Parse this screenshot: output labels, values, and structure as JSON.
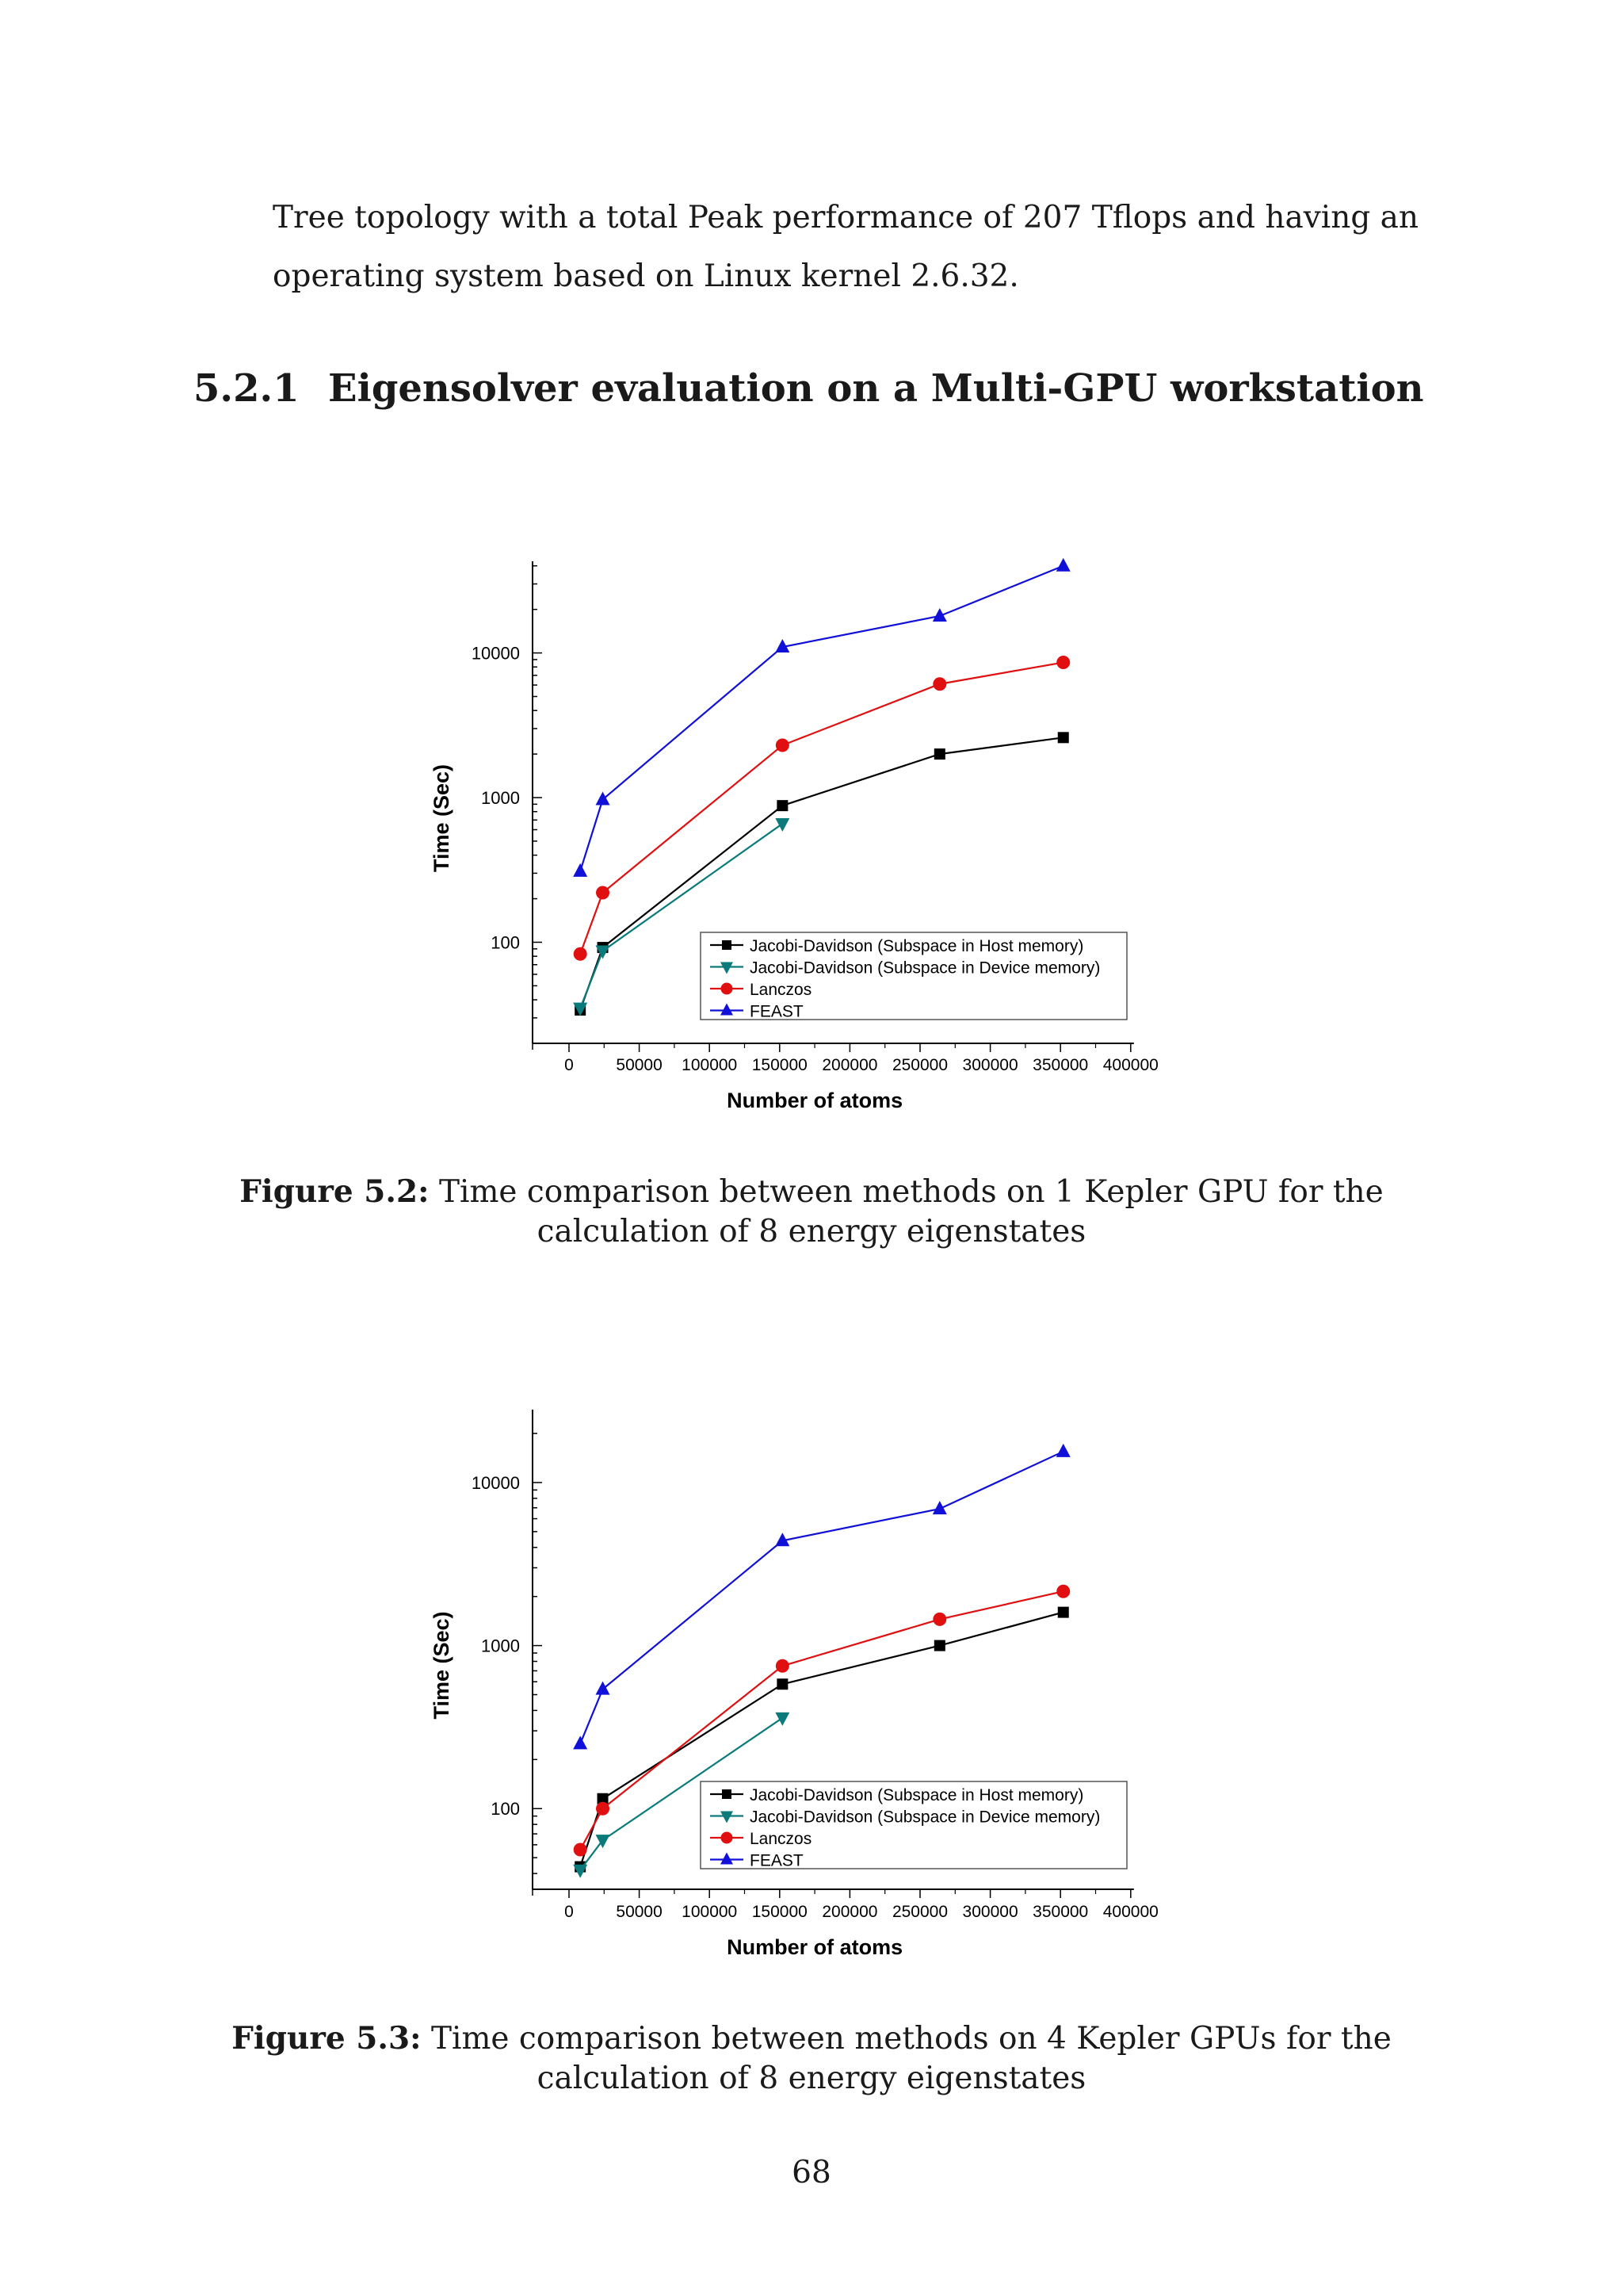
{
  "page": {
    "paragraph": "Tree topology with a total Peak performance of 207 Tflops and having an operating system based on Linux kernel 2.6.32.",
    "section_number": "5.2.1",
    "section_title": "Eigensolver evaluation on a Multi-GPU workstation",
    "page_number": "68"
  },
  "captions": [
    {
      "label": "Figure 5.2:",
      "text": "Time comparison between methods on 1 Kepler GPU for the calculation of 8 energy eigenstates"
    },
    {
      "label": "Figure 5.3:",
      "text": "Time comparison between methods on 4 Kepler GPUs for the calculation of 8 energy eigenstates"
    }
  ],
  "chart_data": [
    {
      "type": "line",
      "xlabel": "Number of atoms",
      "ylabel": "Time (Sec)",
      "xlim": [
        -25000,
        400000
      ],
      "ylim": [
        20,
        43000
      ],
      "yscale": "log",
      "xticks": [
        0,
        50000,
        100000,
        150000,
        200000,
        250000,
        300000,
        350000,
        400000
      ],
      "yticks": [
        100,
        1000,
        10000
      ],
      "legend_position": "bottom-right",
      "series": [
        {
          "name": "Jacobi-Davidson (Subspace in Host memory)",
          "color": "#000000",
          "marker": "square",
          "x": [
            8000,
            24000,
            152000,
            264000,
            352000
          ],
          "y": [
            34,
            92,
            880,
            2000,
            2600
          ]
        },
        {
          "name": "Jacobi-Davidson (Subspace in Device memory)",
          "color": "#0a7a7a",
          "marker": "triangle-down",
          "x": [
            8000,
            24000,
            152000
          ],
          "y": [
            35,
            87,
            660
          ]
        },
        {
          "name": "Lanczos",
          "color": "#e01010",
          "marker": "circle",
          "x": [
            8000,
            24000,
            152000,
            264000,
            352000
          ],
          "y": [
            83,
            220,
            2300,
            6100,
            8600
          ]
        },
        {
          "name": "FEAST",
          "color": "#1010d8",
          "marker": "triangle-up",
          "x": [
            8000,
            24000,
            152000,
            264000,
            352000
          ],
          "y": [
            310,
            970,
            11000,
            18000,
            40000
          ]
        }
      ]
    },
    {
      "type": "line",
      "xlabel": "Number of atoms",
      "ylabel": "Time (Sec)",
      "xlim": [
        -25000,
        400000
      ],
      "ylim": [
        32,
        28000
      ],
      "yscale": "log",
      "xticks": [
        0,
        50000,
        100000,
        150000,
        200000,
        250000,
        300000,
        350000,
        400000
      ],
      "yticks": [
        100,
        1000,
        10000
      ],
      "legend_position": "bottom-right",
      "series": [
        {
          "name": "Jacobi-Davidson (Subspace in Host memory)",
          "color": "#000000",
          "marker": "square",
          "x": [
            8000,
            24000,
            152000,
            264000,
            352000
          ],
          "y": [
            44,
            115,
            580,
            1000,
            1600
          ]
        },
        {
          "name": "Jacobi-Davidson (Subspace in Device memory)",
          "color": "#0a7a7a",
          "marker": "triangle-down",
          "x": [
            8000,
            24000,
            152000
          ],
          "y": [
            42,
            64,
            360
          ]
        },
        {
          "name": "Lanczos",
          "color": "#e01010",
          "marker": "circle",
          "x": [
            8000,
            24000,
            152000,
            264000,
            352000
          ],
          "y": [
            56,
            100,
            750,
            1450,
            2150
          ]
        },
        {
          "name": "FEAST",
          "color": "#1010d8",
          "marker": "triangle-up",
          "x": [
            8000,
            24000,
            152000,
            264000,
            352000
          ],
          "y": [
            250,
            540,
            4400,
            6900,
            15500
          ]
        }
      ]
    }
  ]
}
